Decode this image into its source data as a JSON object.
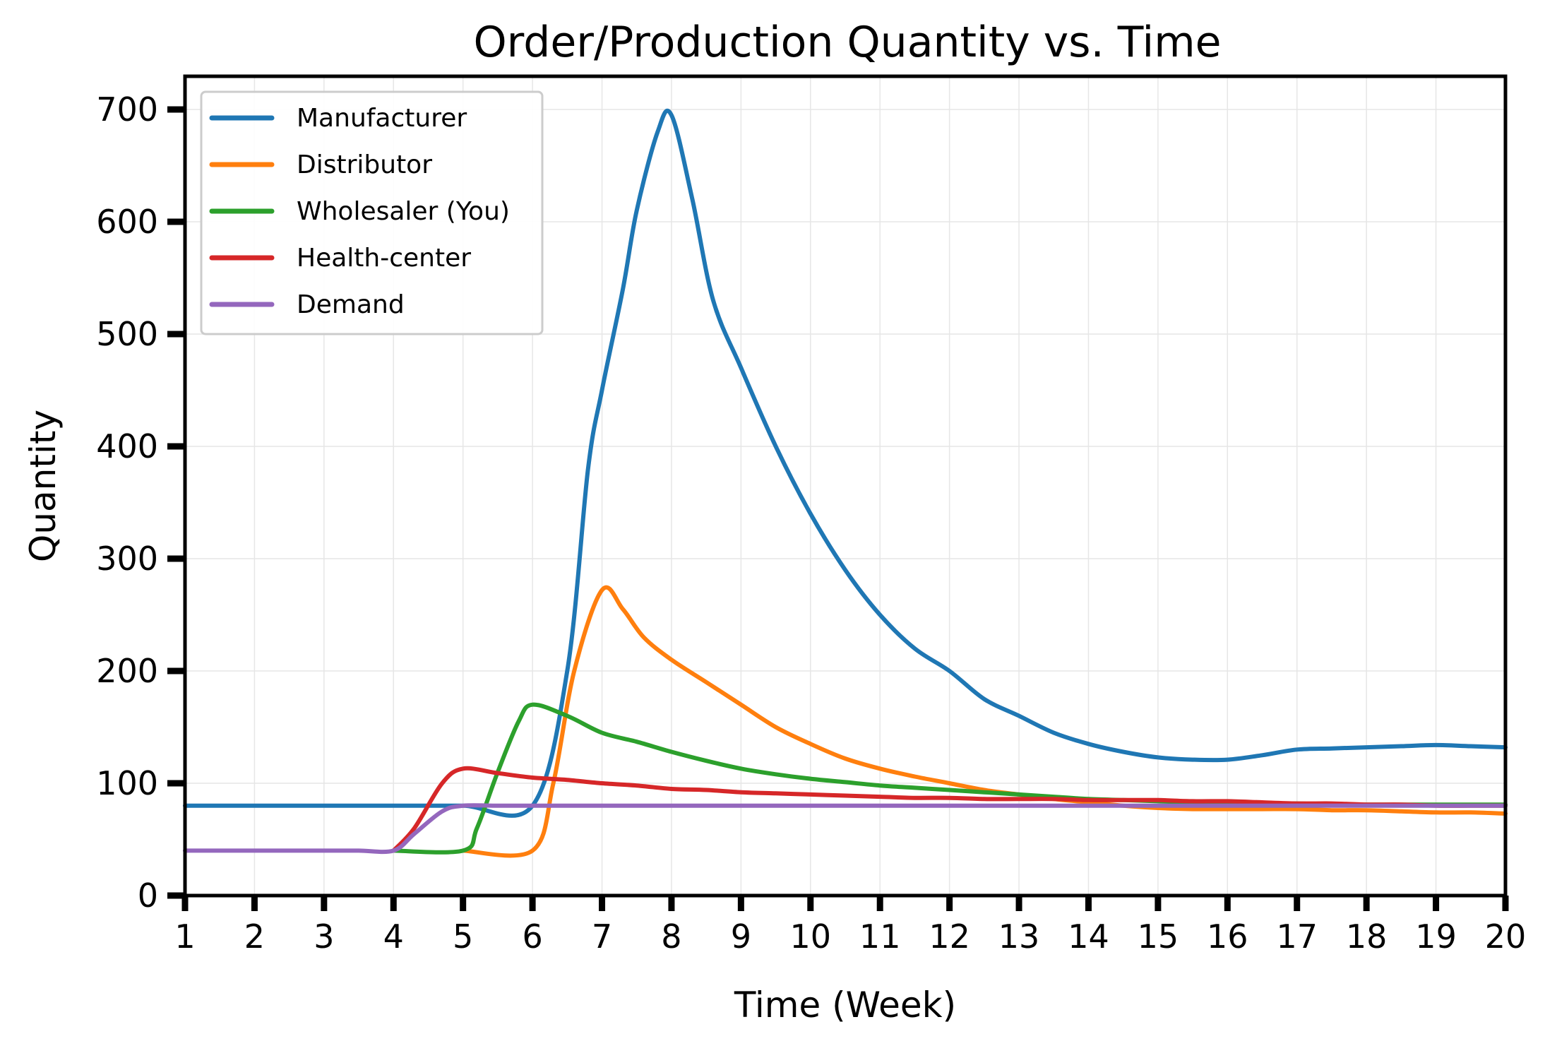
{
  "chart_data": {
    "type": "line",
    "title": "Order/Production Quantity vs. Time",
    "xlabel": "Time (Week)",
    "ylabel": "Quantity",
    "xlim": [
      1,
      20
    ],
    "ylim": [
      0,
      700
    ],
    "x_ticks": [
      1,
      2,
      3,
      4,
      5,
      6,
      7,
      8,
      9,
      10,
      11,
      12,
      13,
      14,
      15,
      16,
      17,
      18,
      19,
      20
    ],
    "y_ticks": [
      0,
      100,
      200,
      300,
      400,
      500,
      600,
      700
    ],
    "grid": true,
    "legend_position": "upper-left",
    "x": [
      1,
      2,
      3,
      4,
      5,
      6,
      7,
      8,
      9,
      10,
      11,
      12,
      13,
      14,
      15,
      16,
      17,
      18,
      19,
      20
    ],
    "series": [
      {
        "name": "Manufacturer",
        "color": "#1f77b4",
        "points": [
          [
            1,
            80
          ],
          [
            2,
            80
          ],
          [
            3,
            80
          ],
          [
            4,
            80
          ],
          [
            5,
            80
          ],
          [
            6,
            80
          ],
          [
            6.5,
            200
          ],
          [
            6.8,
            380
          ],
          [
            7,
            450
          ],
          [
            7.3,
            540
          ],
          [
            7.5,
            610
          ],
          [
            7.8,
            680
          ],
          [
            8,
            695
          ],
          [
            8.3,
            620
          ],
          [
            8.6,
            530
          ],
          [
            9,
            470
          ],
          [
            9.5,
            400
          ],
          [
            10,
            340
          ],
          [
            10.5,
            290
          ],
          [
            11,
            250
          ],
          [
            11.5,
            220
          ],
          [
            12,
            200
          ],
          [
            12.5,
            175
          ],
          [
            13,
            160
          ],
          [
            13.5,
            145
          ],
          [
            14,
            135
          ],
          [
            14.5,
            128
          ],
          [
            15,
            123
          ],
          [
            15.5,
            121
          ],
          [
            16,
            121
          ],
          [
            16.5,
            125
          ],
          [
            17,
            130
          ],
          [
            17.5,
            131
          ],
          [
            18,
            132
          ],
          [
            18.5,
            133
          ],
          [
            19,
            134
          ],
          [
            19.5,
            133
          ],
          [
            20,
            132
          ]
        ]
      },
      {
        "name": "Distributor",
        "color": "#ff7f0e",
        "points": [
          [
            5,
            40
          ],
          [
            6,
            40
          ],
          [
            6.3,
            100
          ],
          [
            6.6,
            200
          ],
          [
            7,
            272
          ],
          [
            7.3,
            255
          ],
          [
            7.6,
            230
          ],
          [
            8,
            210
          ],
          [
            8.5,
            190
          ],
          [
            9,
            170
          ],
          [
            9.5,
            150
          ],
          [
            10,
            135
          ],
          [
            10.5,
            122
          ],
          [
            11,
            113
          ],
          [
            11.5,
            106
          ],
          [
            12,
            100
          ],
          [
            12.5,
            94
          ],
          [
            13,
            90
          ],
          [
            13.5,
            86
          ],
          [
            14,
            83
          ],
          [
            14.5,
            80
          ],
          [
            15,
            78
          ],
          [
            15.5,
            77
          ],
          [
            16,
            77
          ],
          [
            16.5,
            77
          ],
          [
            17,
            77
          ],
          [
            17.5,
            76
          ],
          [
            18,
            76
          ],
          [
            18.5,
            75
          ],
          [
            19,
            74
          ],
          [
            19.5,
            74
          ],
          [
            20,
            73
          ]
        ]
      },
      {
        "name": "Wholesaler (You)",
        "color": "#2ca02c",
        "points": [
          [
            4,
            40
          ],
          [
            5,
            40
          ],
          [
            5.2,
            60
          ],
          [
            5.5,
            110
          ],
          [
            5.8,
            155
          ],
          [
            6,
            170
          ],
          [
            6.5,
            160
          ],
          [
            7,
            145
          ],
          [
            7.5,
            137
          ],
          [
            8,
            128
          ],
          [
            8.5,
            120
          ],
          [
            9,
            113
          ],
          [
            9.5,
            108
          ],
          [
            10,
            104
          ],
          [
            10.5,
            101
          ],
          [
            11,
            98
          ],
          [
            11.5,
            96
          ],
          [
            12,
            94
          ],
          [
            12.5,
            92
          ],
          [
            13,
            90
          ],
          [
            13.5,
            88
          ],
          [
            14,
            86
          ],
          [
            14.5,
            85
          ],
          [
            15,
            84
          ],
          [
            15.5,
            83
          ],
          [
            16,
            83
          ],
          [
            16.5,
            82
          ],
          [
            17,
            82
          ],
          [
            17.5,
            81
          ],
          [
            18,
            81
          ],
          [
            18.5,
            81
          ],
          [
            19,
            81
          ],
          [
            19.5,
            81
          ],
          [
            20,
            81
          ]
        ]
      },
      {
        "name": "Health-center",
        "color": "#d62728",
        "points": [
          [
            4,
            40
          ],
          [
            4.3,
            60
          ],
          [
            4.7,
            100
          ],
          [
            5,
            113
          ],
          [
            5.5,
            109
          ],
          [
            6,
            105
          ],
          [
            6.5,
            103
          ],
          [
            7,
            100
          ],
          [
            7.5,
            98
          ],
          [
            8,
            95
          ],
          [
            8.5,
            94
          ],
          [
            9,
            92
          ],
          [
            9.5,
            91
          ],
          [
            10,
            90
          ],
          [
            10.5,
            89
          ],
          [
            11,
            88
          ],
          [
            11.5,
            87
          ],
          [
            12,
            87
          ],
          [
            12.5,
            86
          ],
          [
            13,
            86
          ],
          [
            13.5,
            86
          ],
          [
            14,
            85
          ],
          [
            14.5,
            85
          ],
          [
            15,
            85
          ],
          [
            15.5,
            84
          ],
          [
            16,
            84
          ],
          [
            16.5,
            83
          ],
          [
            17,
            82
          ],
          [
            17.5,
            82
          ],
          [
            18,
            81
          ],
          [
            18.5,
            81
          ],
          [
            19,
            80
          ],
          [
            19.5,
            80
          ],
          [
            20,
            80
          ]
        ]
      },
      {
        "name": "Demand",
        "color": "#9467bd",
        "points": [
          [
            1,
            40
          ],
          [
            1.5,
            40
          ],
          [
            2,
            40
          ],
          [
            2.5,
            40
          ],
          [
            3,
            40
          ],
          [
            3.5,
            40
          ],
          [
            4,
            40
          ],
          [
            4.3,
            55
          ],
          [
            4.7,
            75
          ],
          [
            5,
            80
          ],
          [
            5.5,
            80
          ],
          [
            6,
            80
          ],
          [
            6.5,
            80
          ],
          [
            7,
            80
          ],
          [
            7.5,
            80
          ],
          [
            8,
            80
          ],
          [
            8.5,
            80
          ],
          [
            9,
            80
          ],
          [
            9.5,
            80
          ],
          [
            10,
            80
          ],
          [
            10.5,
            80
          ],
          [
            11,
            80
          ],
          [
            11.5,
            80
          ],
          [
            12,
            80
          ],
          [
            12.5,
            80
          ],
          [
            13,
            80
          ],
          [
            13.5,
            80
          ],
          [
            14,
            80
          ],
          [
            14.5,
            80
          ],
          [
            15,
            80
          ],
          [
            15.5,
            80
          ],
          [
            16,
            80
          ],
          [
            16.5,
            80
          ],
          [
            17,
            80
          ],
          [
            17.5,
            80
          ],
          [
            18,
            80
          ],
          [
            18.5,
            80
          ],
          [
            19,
            80
          ],
          [
            19.5,
            80
          ],
          [
            20,
            80
          ]
        ]
      }
    ]
  }
}
